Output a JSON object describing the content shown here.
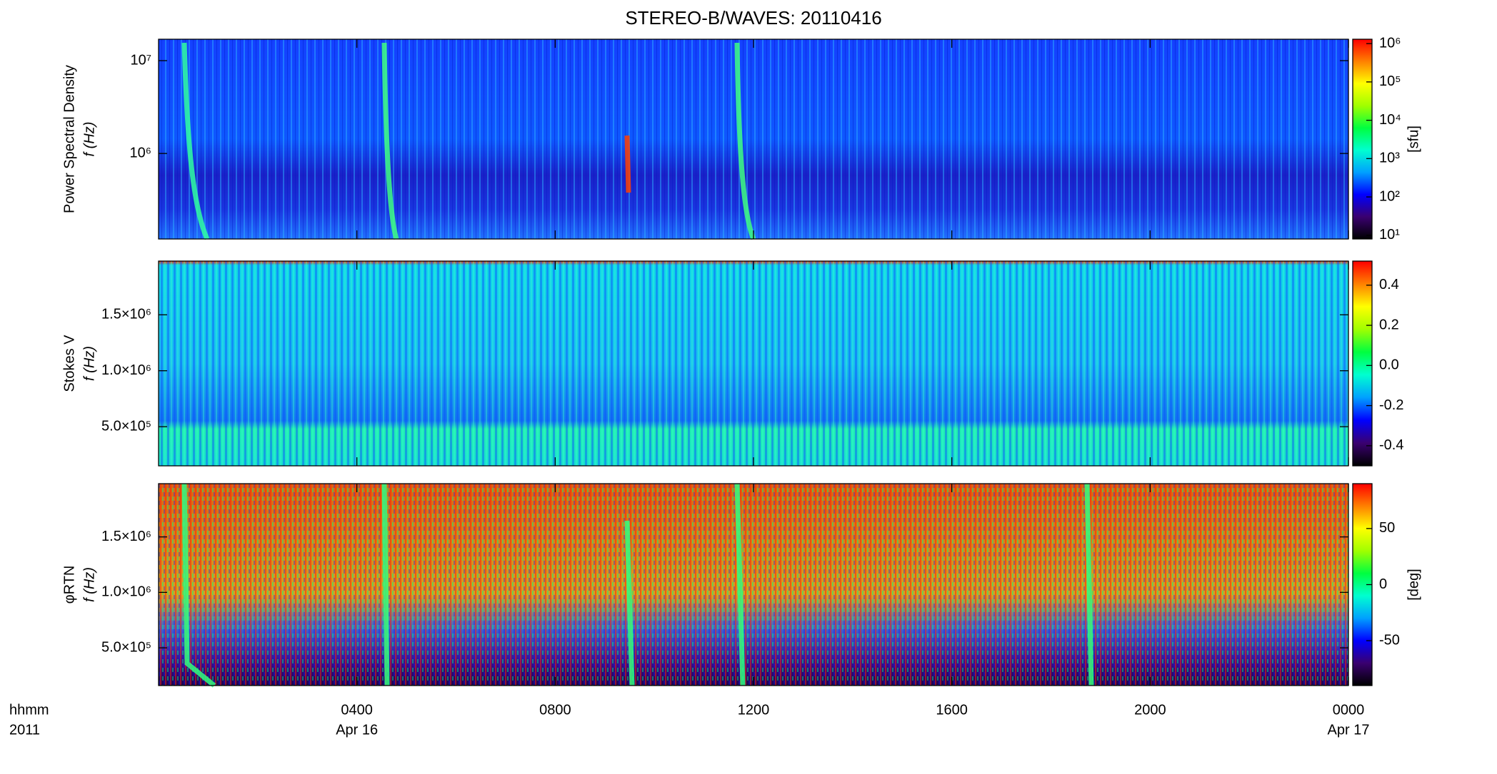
{
  "chart_data": [
    {
      "type": "heatmap",
      "title": "STEREO-B/WAVES: 20110416",
      "ylabel": [
        "Power Spectral Density",
        "f (Hz)"
      ],
      "yscale": "log",
      "xlim": [
        0,
        24
      ],
      "ylim": [
        120000,
        17000000
      ],
      "yticks": [
        {
          "value": 1000000,
          "label": "10⁶"
        },
        {
          "value": 10000000,
          "label": "10⁷"
        }
      ],
      "colorbar": {
        "scale": "log",
        "lim": [
          8,
          1300000
        ],
        "label": "[sfu]",
        "ticks": [
          {
            "value": 10,
            "label": "10¹"
          },
          {
            "value": 100,
            "label": "10²"
          },
          {
            "value": 1000,
            "label": "10³"
          },
          {
            "value": 10000,
            "label": "10⁴"
          },
          {
            "value": 100000,
            "label": "10⁵"
          },
          {
            "value": 1000000,
            "label": "10⁶"
          }
        ]
      },
      "colormap": [
        "#000000",
        "#3a0070",
        "#0000ff",
        "#00a0ff",
        "#00ffd0",
        "#00ff40",
        "#a0ff00",
        "#ffff00",
        "#ff8000",
        "#ff0000"
      ]
    },
    {
      "type": "heatmap",
      "ylabel": [
        "Stokes V",
        "f (Hz)"
      ],
      "yscale": "linear",
      "xlim": [
        0,
        24
      ],
      "ylim": [
        150000,
        1980000
      ],
      "yticks": [
        {
          "value": 500000,
          "label": "5.0×10⁵"
        },
        {
          "value": 1000000,
          "label": "1.0×10⁶"
        },
        {
          "value": 1500000,
          "label": "1.5×10⁶"
        }
      ],
      "colorbar": {
        "scale": "linear",
        "lim": [
          -0.5,
          0.52
        ],
        "ticks": [
          {
            "value": -0.4,
            "label": "-0.4"
          },
          {
            "value": -0.2,
            "label": "-0.2"
          },
          {
            "value": 0,
            "label": "0.0"
          },
          0.2,
          0.4
        ]
      },
      "colormap": [
        "#000000",
        "#3a0070",
        "#0000ff",
        "#00a0ff",
        "#00ffd0",
        "#00ff40",
        "#a0ff00",
        "#ffff00",
        "#ff8000",
        "#ff0000"
      ]
    },
    {
      "type": "heatmap",
      "ylabel": [
        "φRTN",
        "f (Hz)"
      ],
      "yscale": "linear",
      "xlim": [
        0,
        24
      ],
      "ylim": [
        160000,
        1980000
      ],
      "yticks": [
        {
          "value": 500000,
          "label": "5.0×10⁵"
        },
        {
          "value": 1000000,
          "label": "1.0×10⁶"
        },
        {
          "value": 1500000,
          "label": "1.5×10⁶"
        }
      ],
      "colorbar": {
        "scale": "linear",
        "lim": [
          -90,
          90
        ],
        "label": "[deg]",
        "ticks": [
          -50,
          0,
          50
        ]
      },
      "colormap": [
        "#000000",
        "#3a0070",
        "#0000ff",
        "#00a0ff",
        "#00ffd0",
        "#00ff40",
        "#a0ff00",
        "#ffff00",
        "#ff8000",
        "#ff0000"
      ],
      "xlabel": [
        "hhmm",
        "2011"
      ],
      "xticks": [
        {
          "value": 4,
          "label": "0400"
        },
        {
          "value": 8,
          "label": "0800"
        },
        {
          "value": 12,
          "label": "1200"
        },
        {
          "value": 16,
          "label": "1600"
        },
        {
          "value": 20,
          "label": "2000"
        },
        {
          "value": 24,
          "label": "0000"
        }
      ],
      "xtick_dates": [
        {
          "value": 4,
          "label": "Apr 16"
        },
        {
          "value": 24,
          "label": "Apr 17"
        }
      ]
    }
  ]
}
